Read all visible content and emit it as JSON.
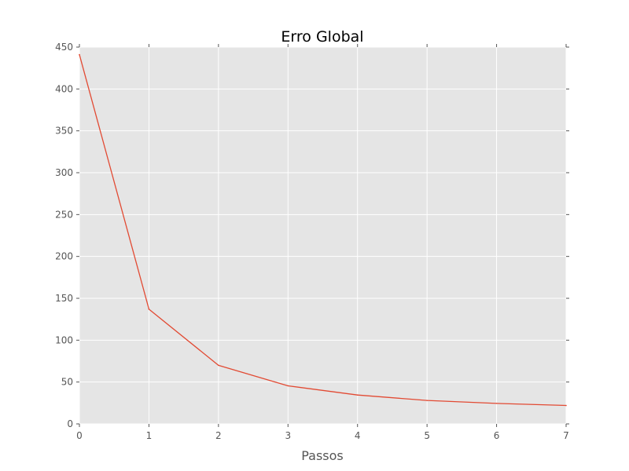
{
  "chart_data": {
    "type": "line",
    "title": "Erro Global",
    "xlabel": "Passos",
    "ylabel": "",
    "x": [
      0,
      1,
      2,
      3,
      4,
      5,
      6,
      7
    ],
    "series": [
      {
        "values": [
          441,
          137,
          70,
          45.5,
          34.5,
          28,
          24.5,
          22
        ],
        "color": "#e24a33"
      }
    ],
    "xlim": [
      0,
      7
    ],
    "ylim": [
      0,
      450
    ],
    "xticks": [
      "0",
      "1",
      "2",
      "3",
      "4",
      "5",
      "6",
      "7"
    ],
    "yticks": [
      "0",
      "50",
      "100",
      "150",
      "200",
      "250",
      "300",
      "350",
      "400",
      "450"
    ],
    "grid": true,
    "colors": {
      "plot_background": "#e5e5e5",
      "grid": "#ffffff",
      "tick_text": "#555555"
    }
  }
}
